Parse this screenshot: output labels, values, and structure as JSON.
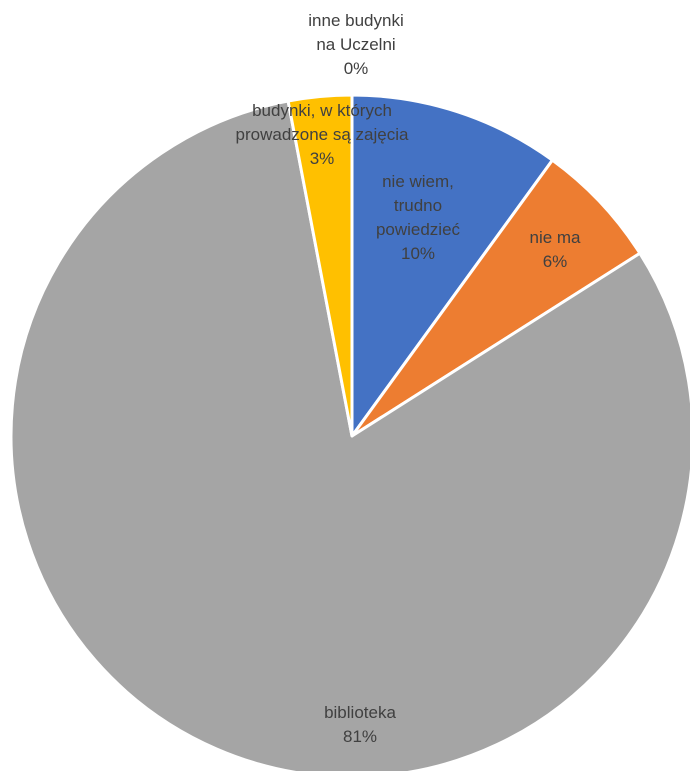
{
  "chart_data": {
    "type": "pie",
    "start_angle_deg": 0,
    "direction": "clockwise",
    "slices": [
      {
        "name": "nie wiem, trudno powiedzieć",
        "label_lines": [
          "nie wiem,",
          "trudno",
          "powiedzieć"
        ],
        "value": 10,
        "percent_label": "10%",
        "color": "#4472C4"
      },
      {
        "name": "nie ma",
        "label_lines": [
          "nie ma"
        ],
        "value": 6,
        "percent_label": "6%",
        "color": "#ED7D31"
      },
      {
        "name": "biblioteka",
        "label_lines": [
          "biblioteka"
        ],
        "value": 81,
        "percent_label": "81%",
        "color": "#A5A5A5"
      },
      {
        "name": "budynki, w których prowadzone są zajęcia",
        "label_lines": [
          "budynki, w których",
          "prowadzone są zajęcia"
        ],
        "value": 3,
        "percent_label": "3%",
        "color": "#FFC000"
      },
      {
        "name": "inne budynki na Uczelni",
        "label_lines": [
          "inne budynki",
          "na Uczelni"
        ],
        "value": 0,
        "percent_label": "0%",
        "color": "#5B9BD5"
      }
    ],
    "legend": "none",
    "data_labels": "category-and-percent"
  }
}
